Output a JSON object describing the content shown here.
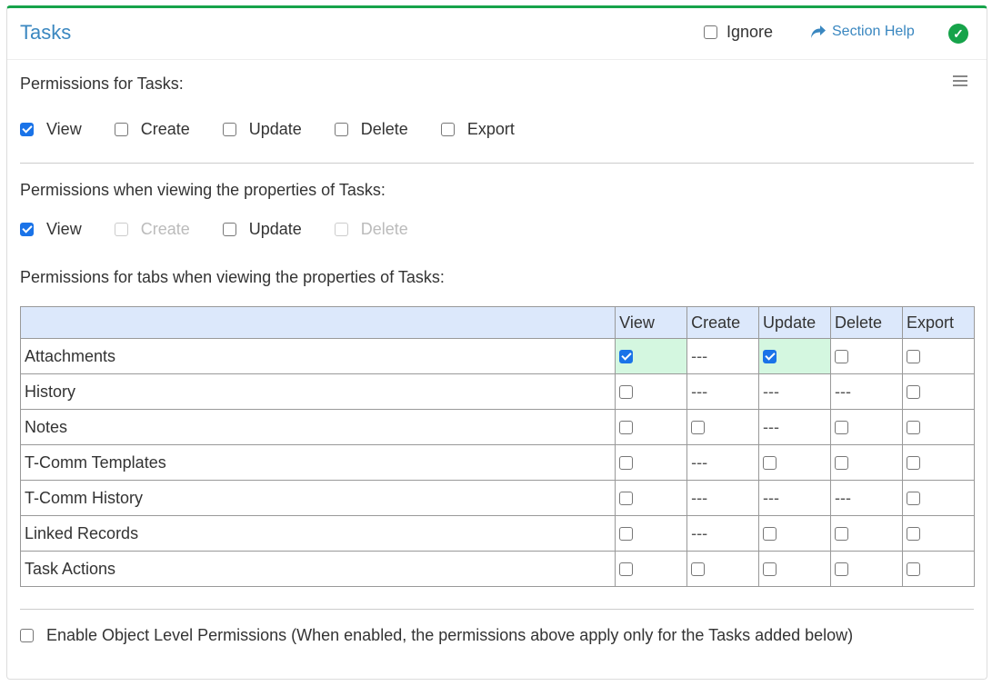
{
  "header": {
    "title": "Tasks",
    "ignore_label": "Ignore",
    "ignore_checked": false,
    "help_label": "Section Help",
    "status_icon": "check-circle-icon",
    "accent": "#16a34a"
  },
  "section1": {
    "label": "Permissions for Tasks:",
    "options": [
      {
        "label": "View",
        "checked": true,
        "disabled": false
      },
      {
        "label": "Create",
        "checked": false,
        "disabled": false
      },
      {
        "label": "Update",
        "checked": false,
        "disabled": false
      },
      {
        "label": "Delete",
        "checked": false,
        "disabled": false
      },
      {
        "label": "Export",
        "checked": false,
        "disabled": false
      }
    ]
  },
  "section2": {
    "label": "Permissions when viewing the properties of Tasks:",
    "options": [
      {
        "label": "View",
        "checked": true,
        "disabled": false
      },
      {
        "label": "Create",
        "checked": false,
        "disabled": true
      },
      {
        "label": "Update",
        "checked": false,
        "disabled": false
      },
      {
        "label": "Delete",
        "checked": false,
        "disabled": true
      }
    ]
  },
  "section3": {
    "label": "Permissions for tabs when viewing the properties of Tasks:",
    "columns": [
      "",
      "View",
      "Create",
      "Update",
      "Delete",
      "Export"
    ],
    "rows": [
      {
        "name": "Attachments",
        "cells": [
          "checked",
          "---",
          "checked",
          "unchecked",
          "unchecked"
        ]
      },
      {
        "name": "History",
        "cells": [
          "unchecked",
          "---",
          "---",
          "---",
          "unchecked"
        ]
      },
      {
        "name": "Notes",
        "cells": [
          "unchecked",
          "unchecked",
          "---",
          "unchecked",
          "unchecked"
        ]
      },
      {
        "name": "T-Comm Templates",
        "cells": [
          "unchecked",
          "---",
          "unchecked",
          "unchecked",
          "unchecked"
        ]
      },
      {
        "name": "T-Comm History",
        "cells": [
          "unchecked",
          "---",
          "---",
          "---",
          "unchecked"
        ]
      },
      {
        "name": "Linked Records",
        "cells": [
          "unchecked",
          "---",
          "unchecked",
          "unchecked",
          "unchecked"
        ]
      },
      {
        "name": "Task Actions",
        "cells": [
          "unchecked",
          "unchecked",
          "unchecked",
          "unchecked",
          "unchecked"
        ]
      }
    ]
  },
  "footer": {
    "label": "Enable Object Level Permissions (When enabled, the permissions above apply only for the Tasks added below)",
    "checked": false
  }
}
